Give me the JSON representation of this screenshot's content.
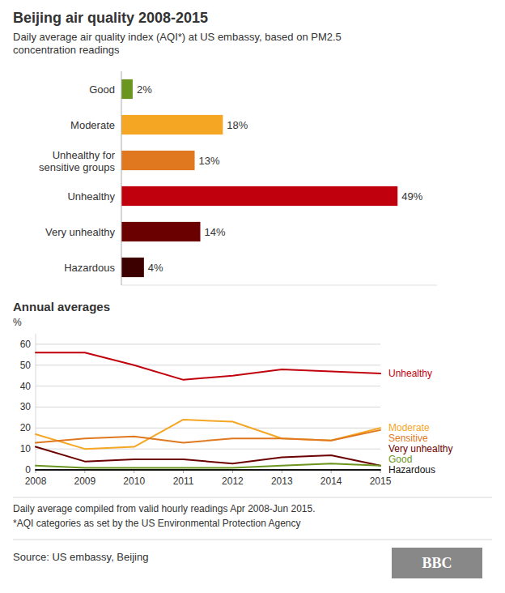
{
  "chart_data": [
    {
      "type": "bar",
      "title": "Beijing air quality 2008-2015",
      "subtitle": "Daily average air quality index (AQI*) at US embassy, based on PM2.5\nconcentration readings",
      "orientation": "horizontal",
      "categories": [
        "Good",
        "Moderate",
        "Unhealthy for\nsensitive groups",
        "Unhealthy",
        "Very unhealthy",
        "Hazardous"
      ],
      "values": [
        2,
        18,
        13,
        49,
        14,
        4
      ],
      "value_labels": [
        "2%",
        "18%",
        "13%",
        "49%",
        "14%",
        "4%"
      ],
      "colors": [
        "#6a961f",
        "#f5a623",
        "#e07820",
        "#c0000c",
        "#6b0000",
        "#3d0000"
      ],
      "xlim": [
        0,
        56
      ],
      "data_labels": true,
      "tick_labels": "y",
      "grid": false
    },
    {
      "type": "line",
      "title": "Annual averages",
      "y_label": "%",
      "x": [
        2008,
        2009,
        2010,
        2011,
        2012,
        2013,
        2014,
        2015
      ],
      "xlim": [
        2008,
        2015
      ],
      "xticks": [
        2008,
        2009,
        2010,
        2011,
        2012,
        2013,
        2014,
        2015
      ],
      "ylim": [
        0,
        65
      ],
      "yticks": [
        0,
        10,
        20,
        30,
        40,
        50,
        60
      ],
      "grid": true,
      "series": [
        {
          "name": "Unhealthy",
          "color": "#c0000c",
          "values": [
            56,
            56,
            50,
            43,
            45,
            48,
            47,
            46
          ]
        },
        {
          "name": "Moderate",
          "color": "#f5a623",
          "values": [
            17,
            10,
            11,
            24,
            23,
            15,
            14,
            20
          ]
        },
        {
          "name": "Sensitive",
          "color": "#e07820",
          "values": [
            13,
            15,
            16,
            13,
            15,
            15,
            14,
            19
          ]
        },
        {
          "name": "Very unhealthy",
          "color": "#6b0000",
          "values": [
            11,
            4,
            5,
            5,
            3,
            6,
            7,
            2
          ]
        },
        {
          "name": "Good",
          "color": "#6a961f",
          "values": [
            2,
            1,
            1,
            1,
            1,
            2,
            3,
            2
          ]
        },
        {
          "name": "Hazardous",
          "color": "#111111",
          "values": [
            0,
            0,
            0,
            0,
            0,
            0,
            0,
            0
          ]
        }
      ],
      "annotations": [
        "Daily average compiled from valid hourly readings Apr 2008-Jun 2015.",
        "*AQI categories as set by the US Environmental Protection Agency",
        "Source: US embassy, Beijing",
        "BBC"
      ]
    }
  ]
}
